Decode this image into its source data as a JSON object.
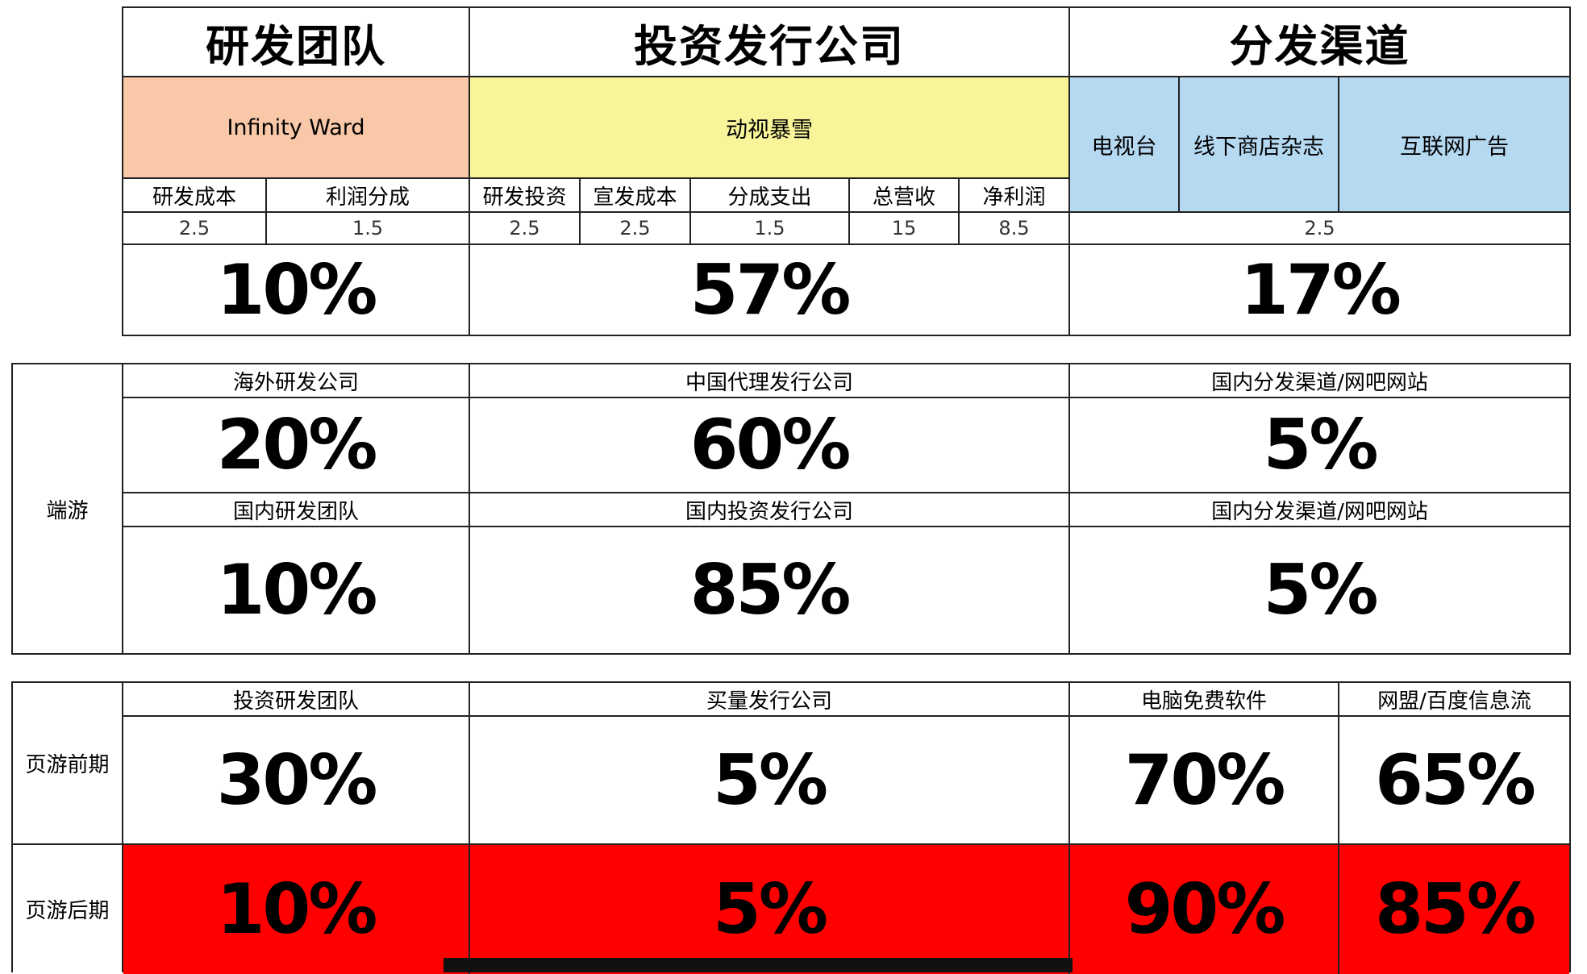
{
  "top": {
    "headers": {
      "dev": "研发团队",
      "pub": "投资发行公司",
      "dist": "分发渠道"
    },
    "companies": {
      "dev": "Infinity Ward",
      "pub": "动视暴雪"
    },
    "channels": [
      "电视台",
      "线下商店杂志",
      "互联网广告"
    ],
    "cost_labels": [
      "研发成本",
      "利润分成",
      "研发投资",
      "宣发成本",
      "分成支出",
      "总营收",
      "净利润"
    ],
    "cost_values": [
      "2.5",
      "1.5",
      "2.5",
      "2.5",
      "1.5",
      "15",
      "8.5"
    ],
    "dist_value": "2.5",
    "shares": {
      "dev": "10%",
      "pub": "57%",
      "dist": "17%"
    }
  },
  "client": {
    "side_label": "端游",
    "row1": {
      "dev_label": "海外研发公司",
      "pub_label": "中国代理发行公司",
      "dist_label": "国内分发渠道/网吧网站",
      "dev": "20%",
      "pub": "60%",
      "dist": "5%"
    },
    "row2": {
      "dev_label": "国内研发团队",
      "pub_label": "国内投资发行公司",
      "dist_label": "国内分发渠道/网吧网站",
      "dev": "10%",
      "pub": "85%",
      "dist": "5%"
    }
  },
  "web": {
    "labels": {
      "dev": "投资研发团队",
      "pub": "买量发行公司",
      "pc": "电脑免费软件",
      "ads": "网盟/百度信息流"
    },
    "early": {
      "side_label": "页游前期",
      "dev": "30%",
      "pub": "5%",
      "pc": "70%",
      "ads": "65%"
    },
    "late": {
      "side_label": "页游后期",
      "dev": "10%",
      "pub": "5%",
      "pc": "90%",
      "ads": "85%"
    }
  },
  "colors": {
    "orange": "#f8c8a8",
    "yellow": "#f8f49a",
    "blue": "#b6d9f2",
    "red": "#ff0000"
  }
}
